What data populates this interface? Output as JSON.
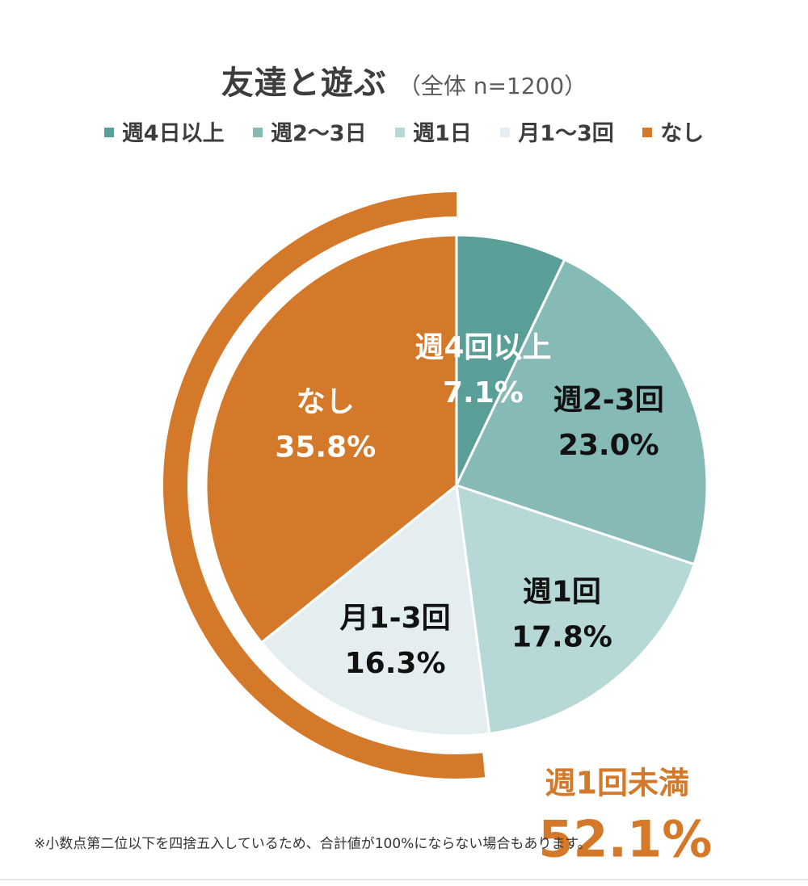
{
  "chart_data": {
    "type": "pie",
    "title": "友達と遊ぶ",
    "subtitle": "（全体 n=1200）",
    "legend": [
      "週4日以上",
      "週2～3日",
      "週1日",
      "月1～3回",
      "なし"
    ],
    "legend_position": "top",
    "slices": [
      {
        "label": "週4回以上",
        "value": 7.1,
        "value_text": "7.1%",
        "color": "#5a9e98",
        "text_color": "#ffffff"
      },
      {
        "label": "週2-3回",
        "value": 23.0,
        "value_text": "23.0%",
        "color": "#86bab6",
        "text_color": "#111111"
      },
      {
        "label": "週1回",
        "value": 17.8,
        "value_text": "17.8%",
        "color": "#b6d8d6",
        "text_color": "#111111"
      },
      {
        "label": "月1-3回",
        "value": 16.3,
        "value_text": "16.3%",
        "color": "#e4eef1",
        "text_color": "#111111"
      },
      {
        "label": "なし",
        "value": 35.8,
        "value_text": "35.8%",
        "color": "#d4782a",
        "text_color": "#ffffff"
      }
    ],
    "start_angle_deg": 0,
    "direction": "clockwise",
    "bracket": {
      "label": "週1回未満",
      "value": 52.1,
      "value_text": "52.1%",
      "color": "#d4782a",
      "covers": [
        "月1-3回",
        "なし"
      ]
    }
  },
  "note": "※小数点第二位以下を四捨五入しているため、合計値が100%にならない場合もあります。"
}
